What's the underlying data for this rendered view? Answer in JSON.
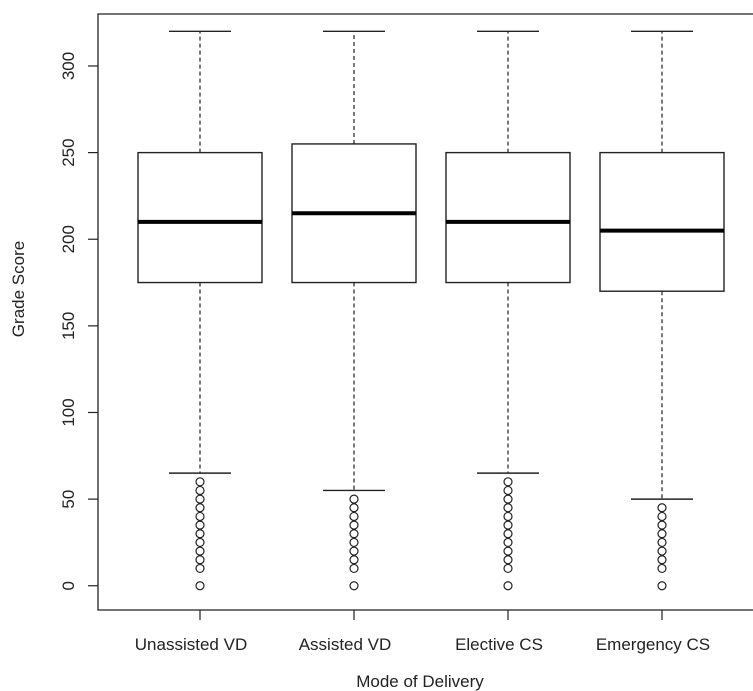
{
  "chart_data": {
    "type": "boxplot",
    "xlabel": "Mode of Delivery",
    "ylabel": "Grade Score",
    "ylim": [
      -14,
      330
    ],
    "yticks": [
      0,
      50,
      100,
      150,
      200,
      250,
      300
    ],
    "categories": [
      "Unassisted VD",
      "Assisted VD",
      "Elective CS",
      "Emergency CS"
    ],
    "boxes": [
      {
        "label": "Unassisted VD",
        "whisker_low": 65,
        "q1": 175,
        "median": 210,
        "q3": 250,
        "whisker_high": 320,
        "outliers": [
          0,
          10,
          15,
          20,
          25,
          30,
          35,
          40,
          45,
          50,
          55,
          60
        ]
      },
      {
        "label": "Assisted VD",
        "whisker_low": 55,
        "q1": 175,
        "median": 215,
        "q3": 255,
        "whisker_high": 320,
        "outliers": [
          0,
          10,
          15,
          20,
          25,
          30,
          35,
          40,
          45,
          50
        ]
      },
      {
        "label": "Elective CS",
        "whisker_low": 65,
        "q1": 175,
        "median": 210,
        "q3": 250,
        "whisker_high": 320,
        "outliers": [
          0,
          10,
          15,
          20,
          25,
          30,
          35,
          40,
          45,
          50,
          55,
          60
        ]
      },
      {
        "label": "Emergency CS",
        "whisker_low": 50,
        "q1": 170,
        "median": 205,
        "q3": 250,
        "whisker_high": 320,
        "outliers": [
          0,
          10,
          15,
          20,
          25,
          30,
          35,
          40,
          45
        ]
      }
    ]
  }
}
